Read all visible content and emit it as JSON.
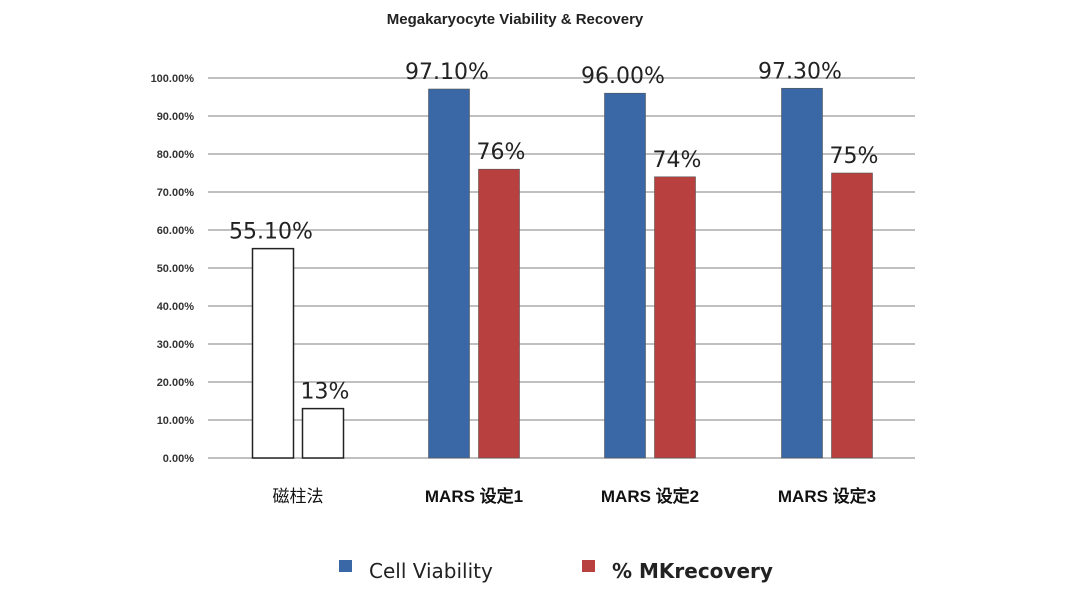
{
  "chart_data": {
    "type": "bar",
    "title": "Megakaryocyte Viability & Recovery",
    "categories": [
      "磁柱法",
      "MARS 设定1",
      "MARS 设定2",
      "MARS 设定3"
    ],
    "series": [
      {
        "name": "Cell Viability",
        "values": [
          55.1,
          97.1,
          96.0,
          97.3
        ],
        "labels": [
          "55.10%",
          "97.10%",
          "96.00%",
          "97.30%"
        ],
        "color": "#3a68a6"
      },
      {
        "name": "% MKrecovery",
        "values": [
          13,
          76,
          74,
          75
        ],
        "labels": [
          "13%",
          "76%",
          "74%",
          "75%"
        ],
        "color": "#b8403e"
      }
    ],
    "first_category_style": "unfilled outline",
    "yticks": [
      "0.00%",
      "10.00%",
      "20.00%",
      "30.00%",
      "40.00%",
      "50.00%",
      "60.00%",
      "70.00%",
      "80.00%",
      "90.00%",
      "100.00%"
    ],
    "ylim": [
      0,
      100
    ],
    "grid": true,
    "legend": "bottom",
    "xlabel": "",
    "ylabel": ""
  }
}
